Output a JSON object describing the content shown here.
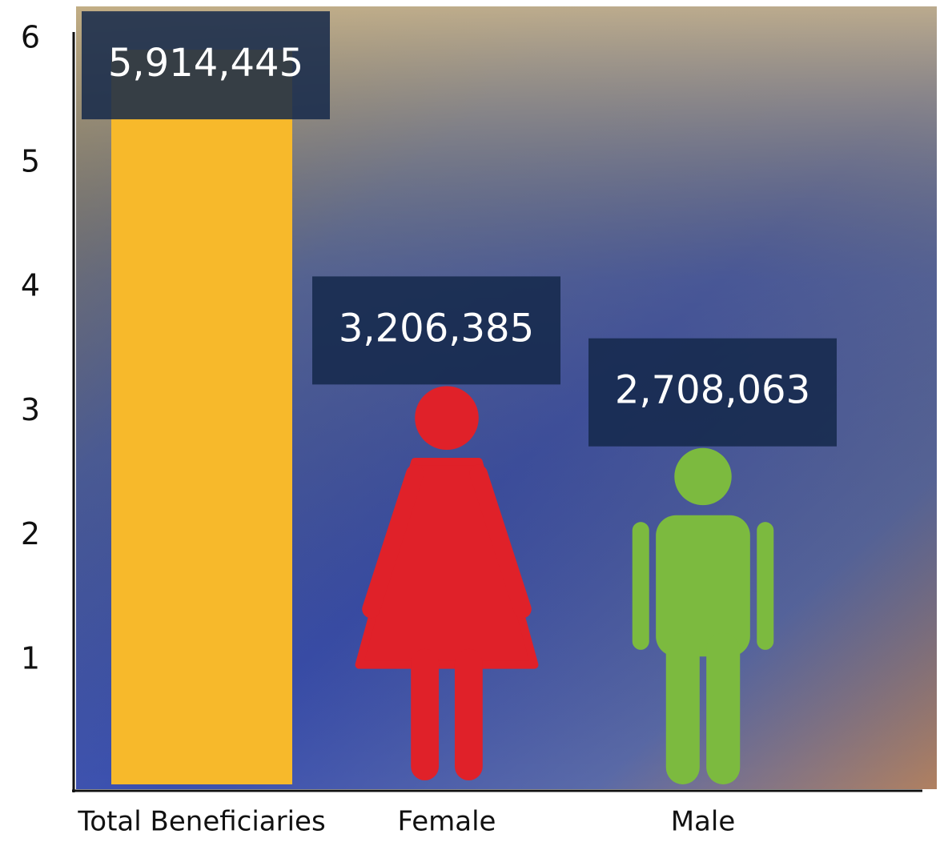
{
  "chart_data": {
    "type": "bar",
    "categories": [
      "Total Beneficiaries",
      "Female",
      "Male"
    ],
    "values": [
      5.914445,
      3.206385,
      2.708063
    ],
    "value_labels": [
      "5,914,445",
      "3,206,385",
      "2,708,063"
    ],
    "colors": [
      "#f7b92b",
      "#e02129",
      "#7cba3f"
    ],
    "shapes": [
      "bar",
      "female",
      "male"
    ],
    "ylim": [
      0,
      6.25
    ],
    "yticks": [
      1,
      2,
      3,
      4,
      5,
      6
    ]
  }
}
